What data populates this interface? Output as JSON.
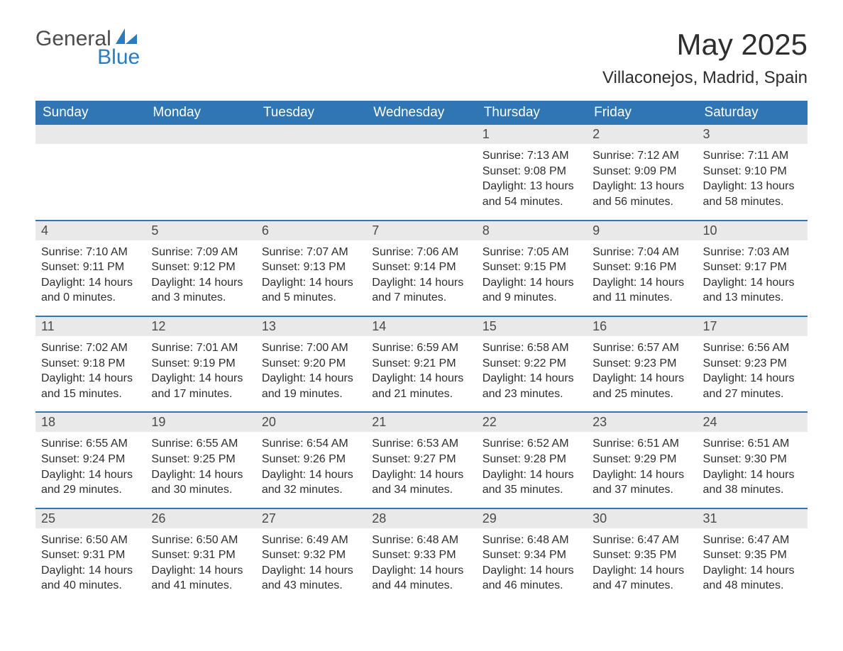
{
  "brand": {
    "word1": "General",
    "word2": "Blue"
  },
  "title": "May 2025",
  "location": "Villaconejos, Madrid, Spain",
  "colors": {
    "header_bg": "#3076b5",
    "header_text": "#ffffff",
    "daynum_bg": "#e9e9e9",
    "row_border": "#3076b5",
    "brand_blue": "#2c7bbf"
  },
  "weekday_labels": [
    "Sunday",
    "Monday",
    "Tuesday",
    "Wednesday",
    "Thursday",
    "Friday",
    "Saturday"
  ],
  "leading_blanks": 4,
  "days": [
    {
      "n": 1,
      "sunrise": "7:13 AM",
      "sunset": "9:08 PM",
      "daylight": "13 hours and 54 minutes."
    },
    {
      "n": 2,
      "sunrise": "7:12 AM",
      "sunset": "9:09 PM",
      "daylight": "13 hours and 56 minutes."
    },
    {
      "n": 3,
      "sunrise": "7:11 AM",
      "sunset": "9:10 PM",
      "daylight": "13 hours and 58 minutes."
    },
    {
      "n": 4,
      "sunrise": "7:10 AM",
      "sunset": "9:11 PM",
      "daylight": "14 hours and 0 minutes."
    },
    {
      "n": 5,
      "sunrise": "7:09 AM",
      "sunset": "9:12 PM",
      "daylight": "14 hours and 3 minutes."
    },
    {
      "n": 6,
      "sunrise": "7:07 AM",
      "sunset": "9:13 PM",
      "daylight": "14 hours and 5 minutes."
    },
    {
      "n": 7,
      "sunrise": "7:06 AM",
      "sunset": "9:14 PM",
      "daylight": "14 hours and 7 minutes."
    },
    {
      "n": 8,
      "sunrise": "7:05 AM",
      "sunset": "9:15 PM",
      "daylight": "14 hours and 9 minutes."
    },
    {
      "n": 9,
      "sunrise": "7:04 AM",
      "sunset": "9:16 PM",
      "daylight": "14 hours and 11 minutes."
    },
    {
      "n": 10,
      "sunrise": "7:03 AM",
      "sunset": "9:17 PM",
      "daylight": "14 hours and 13 minutes."
    },
    {
      "n": 11,
      "sunrise": "7:02 AM",
      "sunset": "9:18 PM",
      "daylight": "14 hours and 15 minutes."
    },
    {
      "n": 12,
      "sunrise": "7:01 AM",
      "sunset": "9:19 PM",
      "daylight": "14 hours and 17 minutes."
    },
    {
      "n": 13,
      "sunrise": "7:00 AM",
      "sunset": "9:20 PM",
      "daylight": "14 hours and 19 minutes."
    },
    {
      "n": 14,
      "sunrise": "6:59 AM",
      "sunset": "9:21 PM",
      "daylight": "14 hours and 21 minutes."
    },
    {
      "n": 15,
      "sunrise": "6:58 AM",
      "sunset": "9:22 PM",
      "daylight": "14 hours and 23 minutes."
    },
    {
      "n": 16,
      "sunrise": "6:57 AM",
      "sunset": "9:23 PM",
      "daylight": "14 hours and 25 minutes."
    },
    {
      "n": 17,
      "sunrise": "6:56 AM",
      "sunset": "9:23 PM",
      "daylight": "14 hours and 27 minutes."
    },
    {
      "n": 18,
      "sunrise": "6:55 AM",
      "sunset": "9:24 PM",
      "daylight": "14 hours and 29 minutes."
    },
    {
      "n": 19,
      "sunrise": "6:55 AM",
      "sunset": "9:25 PM",
      "daylight": "14 hours and 30 minutes."
    },
    {
      "n": 20,
      "sunrise": "6:54 AM",
      "sunset": "9:26 PM",
      "daylight": "14 hours and 32 minutes."
    },
    {
      "n": 21,
      "sunrise": "6:53 AM",
      "sunset": "9:27 PM",
      "daylight": "14 hours and 34 minutes."
    },
    {
      "n": 22,
      "sunrise": "6:52 AM",
      "sunset": "9:28 PM",
      "daylight": "14 hours and 35 minutes."
    },
    {
      "n": 23,
      "sunrise": "6:51 AM",
      "sunset": "9:29 PM",
      "daylight": "14 hours and 37 minutes."
    },
    {
      "n": 24,
      "sunrise": "6:51 AM",
      "sunset": "9:30 PM",
      "daylight": "14 hours and 38 minutes."
    },
    {
      "n": 25,
      "sunrise": "6:50 AM",
      "sunset": "9:31 PM",
      "daylight": "14 hours and 40 minutes."
    },
    {
      "n": 26,
      "sunrise": "6:50 AM",
      "sunset": "9:31 PM",
      "daylight": "14 hours and 41 minutes."
    },
    {
      "n": 27,
      "sunrise": "6:49 AM",
      "sunset": "9:32 PM",
      "daylight": "14 hours and 43 minutes."
    },
    {
      "n": 28,
      "sunrise": "6:48 AM",
      "sunset": "9:33 PM",
      "daylight": "14 hours and 44 minutes."
    },
    {
      "n": 29,
      "sunrise": "6:48 AM",
      "sunset": "9:34 PM",
      "daylight": "14 hours and 46 minutes."
    },
    {
      "n": 30,
      "sunrise": "6:47 AM",
      "sunset": "9:35 PM",
      "daylight": "14 hours and 47 minutes."
    },
    {
      "n": 31,
      "sunrise": "6:47 AM",
      "sunset": "9:35 PM",
      "daylight": "14 hours and 48 minutes."
    }
  ],
  "field_labels": {
    "sunrise": "Sunrise: ",
    "sunset": "Sunset: ",
    "daylight": "Daylight: "
  }
}
